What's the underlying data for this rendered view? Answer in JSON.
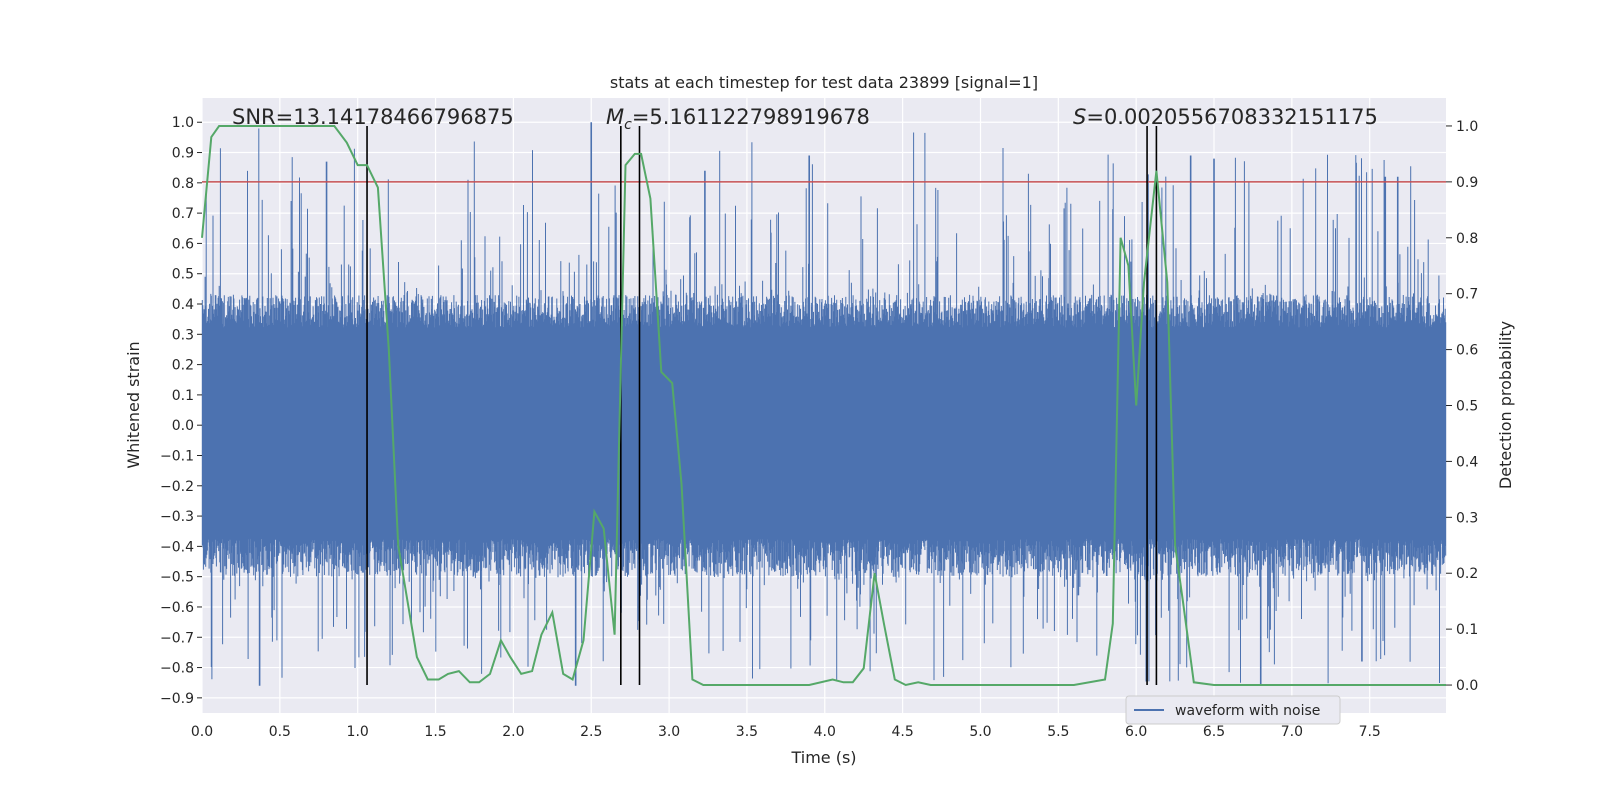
{
  "chart_data": {
    "type": "line",
    "title": "stats at each timestep for test data 23899 [signal=1]",
    "xlabel": "Time (s)",
    "ylabel_left": "Whitened strain",
    "ylabel_right": "Detection probability",
    "xlim": [
      0.0,
      7.99
    ],
    "ylim_left": [
      -0.95,
      1.08
    ],
    "ylim_right": [
      -0.05,
      1.05
    ],
    "xticks": [
      "0.0",
      "0.5",
      "1.0",
      "1.5",
      "2.0",
      "2.5",
      "3.0",
      "3.5",
      "4.0",
      "4.5",
      "5.0",
      "5.5",
      "6.0",
      "6.5",
      "7.0",
      "7.5"
    ],
    "yticks_left": [
      "1.0",
      "0.9",
      "0.8",
      "0.7",
      "0.6",
      "0.5",
      "0.4",
      "0.3",
      "0.2",
      "0.1",
      "0.0",
      "−0.1",
      "−0.2",
      "−0.3",
      "−0.4",
      "−0.5",
      "−0.6",
      "−0.7",
      "−0.8",
      "−0.9"
    ],
    "yticks_right": [
      "1.0",
      "0.9",
      "0.8",
      "0.7",
      "0.6",
      "0.5",
      "0.4",
      "0.3",
      "0.2",
      "0.1",
      "0.0"
    ],
    "grid": true,
    "legend": {
      "position": "bottom-center",
      "entries": [
        "waveform with noise"
      ]
    },
    "annotations": {
      "snr": "SNR=13.14178466796875",
      "mc": "M",
      "mc_sub": "c",
      "mc_value": "=5.161122798919678",
      "s": "S",
      "s_value": "=0.0020556708332151175"
    },
    "threshold": {
      "axis": "right",
      "value": 0.9,
      "color": "#c44e52"
    },
    "vertical_lines": [
      1.06,
      2.69,
      2.81,
      6.07,
      6.13
    ],
    "series": [
      {
        "name": "waveform with noise",
        "axis": "left",
        "color": "#4c72b0",
        "noise_envelope": {
          "core_high": 0.43,
          "core_low": -0.5,
          "spike_high": 0.98,
          "spike_low": -0.86
        },
        "prominent_peaks": [
          {
            "x": 0.8,
            "y": 0.87
          },
          {
            "x": 2.5,
            "y": 1.0
          },
          {
            "x": 2.4,
            "y": -0.86
          },
          {
            "x": 3.23,
            "y": 0.84
          },
          {
            "x": 3.9,
            "y": 0.89
          },
          {
            "x": 6.35,
            "y": 0.89
          },
          {
            "x": 6.5,
            "y": 0.88
          },
          {
            "x": 7.6,
            "y": 0.82
          },
          {
            "x": 7.68,
            "y": 0.82
          },
          {
            "x": 0.37,
            "y": -0.86
          },
          {
            "x": 6.8,
            "y": -0.86
          },
          {
            "x": 7.45,
            "y": -0.78
          }
        ]
      },
      {
        "name": "detection probability",
        "axis": "right",
        "color": "#55a868",
        "x": [
          0.0,
          0.06,
          0.11,
          0.2,
          0.4,
          0.6,
          0.85,
          0.93,
          1.0,
          1.06,
          1.13,
          1.2,
          1.26,
          1.32,
          1.38,
          1.45,
          1.52,
          1.58,
          1.65,
          1.72,
          1.78,
          1.85,
          1.92,
          1.98,
          2.05,
          2.12,
          2.18,
          2.25,
          2.32,
          2.38,
          2.45,
          2.52,
          2.58,
          2.65,
          2.72,
          2.78,
          2.82,
          2.88,
          2.95,
          3.02,
          3.08,
          3.15,
          3.22,
          3.3,
          3.5,
          3.7,
          3.9,
          4.05,
          4.12,
          4.18,
          4.25,
          4.32,
          4.38,
          4.45,
          4.52,
          4.6,
          4.68,
          4.8,
          5.2,
          5.6,
          5.8,
          5.85,
          5.9,
          5.95,
          6.0,
          6.05,
          6.13,
          6.2,
          6.25,
          6.3,
          6.37,
          6.5,
          7.0,
          7.5,
          7.99
        ],
        "y": [
          0.8,
          0.98,
          1.0,
          1.0,
          1.0,
          1.0,
          1.0,
          0.97,
          0.93,
          0.93,
          0.89,
          0.6,
          0.25,
          0.15,
          0.05,
          0.01,
          0.01,
          0.02,
          0.025,
          0.005,
          0.005,
          0.02,
          0.08,
          0.05,
          0.02,
          0.025,
          0.09,
          0.13,
          0.02,
          0.01,
          0.08,
          0.31,
          0.28,
          0.09,
          0.93,
          0.95,
          0.95,
          0.87,
          0.56,
          0.54,
          0.36,
          0.01,
          0.0,
          0.0,
          0.0,
          0.0,
          0.0,
          0.01,
          0.005,
          0.005,
          0.03,
          0.2,
          0.11,
          0.01,
          0.0,
          0.005,
          0.0,
          0.0,
          0.0,
          0.0,
          0.01,
          0.11,
          0.8,
          0.75,
          0.5,
          0.72,
          0.92,
          0.72,
          0.25,
          0.15,
          0.005,
          0.0,
          0.0,
          0.0,
          0.0
        ]
      }
    ]
  }
}
